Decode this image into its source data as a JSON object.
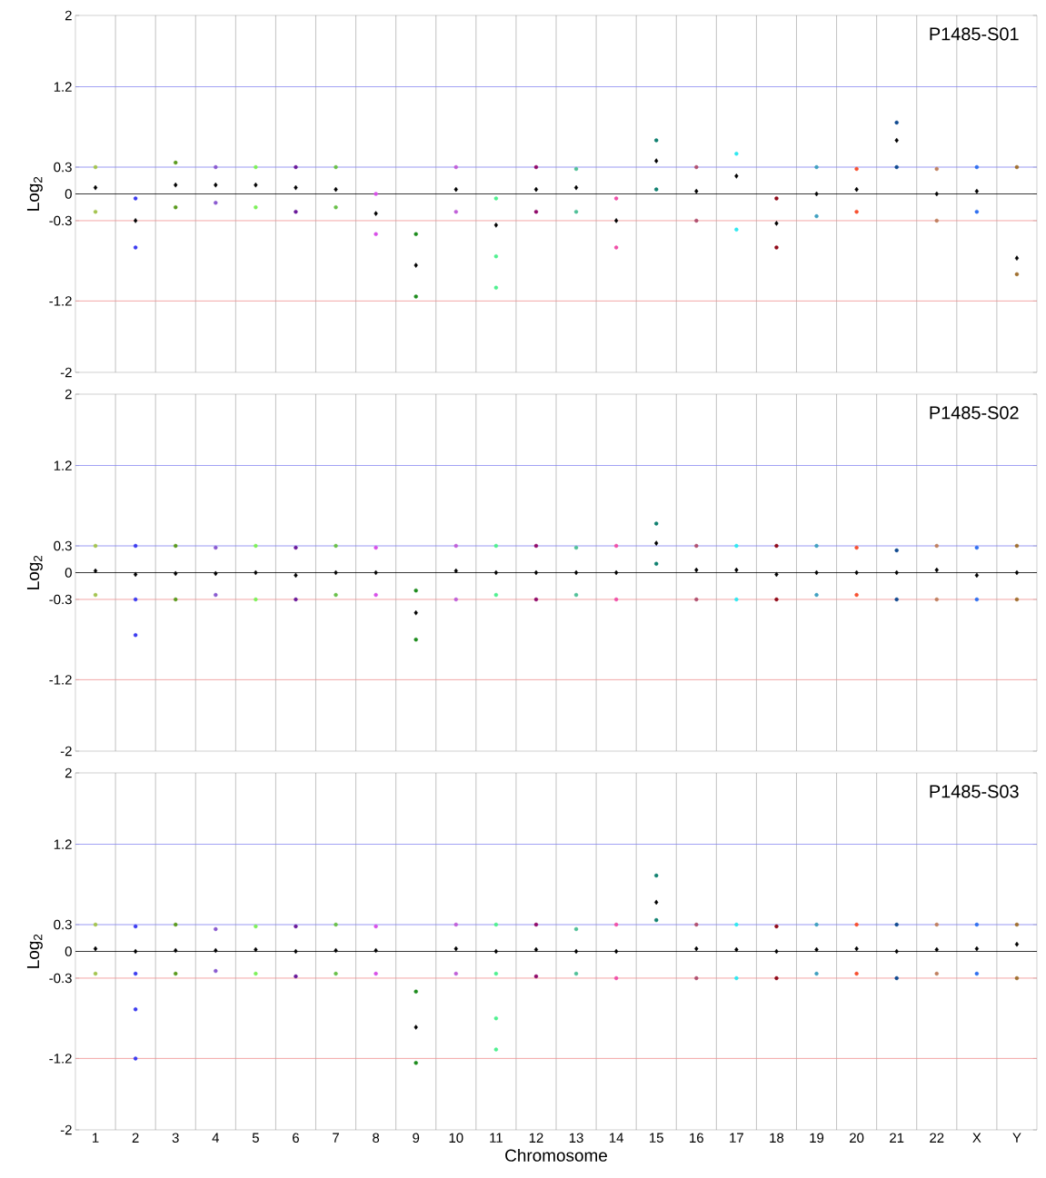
{
  "chart_data": [
    {
      "type": "scatter",
      "title": "P1485-S01",
      "ylabel": "Log$_{2}$",
      "tick_labels": "y",
      "ylim": [
        -2,
        2
      ],
      "yticks": [
        -2,
        -1.2,
        -0.3,
        0,
        0.3,
        1.2,
        2
      ],
      "categories": [
        null,
        null,
        null,
        null,
        null,
        null,
        null,
        null,
        null,
        null,
        null,
        null,
        null,
        null,
        null,
        null,
        null,
        null,
        null,
        null,
        null,
        null,
        null,
        null
      ],
      "ref_lines": [
        {
          "axis": "y",
          "value": 1.2,
          "color": "#8080f0"
        },
        {
          "axis": "y",
          "value": 0.3,
          "color": "#8080f0"
        },
        {
          "axis": "y",
          "value": 0,
          "color": "#000000"
        },
        {
          "axis": "y",
          "value": -0.3,
          "color": "#f09090"
        },
        {
          "axis": "y",
          "value": -1.2,
          "color": "#f09090"
        }
      ],
      "series": [
        {
          "colors": [
            "#a4c450",
            "#3c3cf0",
            "#5a9a1e",
            "#8a5ad0",
            "#7ef05a",
            "#6a1a9a",
            "#6ac04a",
            "#d850e8",
            "#1e8c1e",
            "#c060d8",
            "#50f090",
            "#900a6a",
            "#50c098",
            "#f050a8",
            "#108070",
            "#b05070",
            "#30e8f0",
            "#900a1a",
            "#40a0c0",
            "#f85030",
            "#104a90",
            "#c08060",
            "#3070f0",
            "#a07030"
          ],
          "values": [
            0.3,
            -0.05,
            0.35,
            0.3,
            0.3,
            0.3,
            0.3,
            0.0,
            -0.45,
            0.3,
            -0.05,
            0.3,
            0.28,
            -0.05,
            0.6,
            0.3,
            0.45,
            -0.05,
            0.3,
            0.28,
            0.8,
            0.28,
            0.3,
            0.3
          ]
        },
        {
          "colors": [
            "#a4c450",
            "#3c3cf0",
            "#5a9a1e",
            "#8a5ad0",
            "#7ef05a",
            "#6a1a9a",
            "#6ac04a",
            "#d850e8",
            "#1e8c1e",
            "#c060d8",
            "#50f090",
            "#900a6a",
            "#50c098",
            "#f050a8",
            "#108070",
            "#b05070",
            "#30e8f0",
            "#900a1a",
            "#40a0c0",
            "#f85030",
            "#104a90",
            "#c08060",
            "#3070f0",
            "#a07030"
          ],
          "values": [
            -0.2,
            -0.6,
            -0.15,
            -0.1,
            -0.15,
            -0.2,
            -0.15,
            -0.45,
            -1.15,
            -0.2,
            -0.7,
            -0.2,
            -0.2,
            -0.6,
            0.05,
            -0.3,
            -0.4,
            -0.6,
            -0.25,
            -0.2,
            0.3,
            -0.3,
            -0.2,
            -0.9
          ]
        },
        {
          "color": "#50f090",
          "values": [
            null,
            null,
            null,
            null,
            null,
            null,
            null,
            null,
            null,
            null,
            -1.05,
            null,
            null,
            null,
            null,
            null,
            null,
            null,
            null,
            null,
            null,
            null,
            null,
            null
          ]
        },
        {
          "color": "#000000",
          "marker": "diamond",
          "values": [
            0.07,
            -0.3,
            0.1,
            0.1,
            0.1,
            0.07,
            0.05,
            -0.22,
            -0.8,
            0.05,
            -0.35,
            0.05,
            0.07,
            -0.3,
            0.37,
            0.03,
            0.2,
            -0.33,
            0.0,
            0.05,
            0.6,
            0.0,
            0.03,
            -0.72
          ]
        }
      ]
    },
    {
      "type": "scatter",
      "title": "P1485-S02",
      "ylabel": "Log$_{2}$",
      "tick_labels": "y",
      "ylim": [
        -2,
        2
      ],
      "yticks": [
        -2,
        -1.2,
        -0.3,
        0,
        0.3,
        1.2,
        2
      ],
      "categories": [
        null,
        null,
        null,
        null,
        null,
        null,
        null,
        null,
        null,
        null,
        null,
        null,
        null,
        null,
        null,
        null,
        null,
        null,
        null,
        null,
        null,
        null,
        null,
        null
      ],
      "ref_lines": [
        {
          "axis": "y",
          "value": 1.2,
          "color": "#8080f0"
        },
        {
          "axis": "y",
          "value": 0.3,
          "color": "#8080f0"
        },
        {
          "axis": "y",
          "value": 0,
          "color": "#000000"
        },
        {
          "axis": "y",
          "value": -0.3,
          "color": "#f09090"
        },
        {
          "axis": "y",
          "value": -1.2,
          "color": "#f09090"
        }
      ],
      "series": [
        {
          "colors": [
            "#a4c450",
            "#3c3cf0",
            "#5a9a1e",
            "#8a5ad0",
            "#7ef05a",
            "#6a1a9a",
            "#6ac04a",
            "#d850e8",
            "#1e8c1e",
            "#c060d8",
            "#50f090",
            "#900a6a",
            "#50c098",
            "#f050a8",
            "#108070",
            "#b05070",
            "#30e8f0",
            "#900a1a",
            "#40a0c0",
            "#f85030",
            "#104a90",
            "#c08060",
            "#3070f0",
            "#a07030"
          ],
          "values": [
            0.3,
            0.3,
            0.3,
            0.28,
            0.3,
            0.28,
            0.3,
            0.28,
            -0.2,
            0.3,
            0.3,
            0.3,
            0.28,
            0.3,
            0.55,
            0.3,
            0.3,
            0.3,
            0.3,
            0.28,
            0.25,
            0.3,
            0.28,
            0.3
          ]
        },
        {
          "colors": [
            "#a4c450",
            "#3c3cf0",
            "#5a9a1e",
            "#8a5ad0",
            "#7ef05a",
            "#6a1a9a",
            "#6ac04a",
            "#d850e8",
            "#1e8c1e",
            "#c060d8",
            "#50f090",
            "#900a6a",
            "#50c098",
            "#f050a8",
            "#108070",
            "#b05070",
            "#30e8f0",
            "#900a1a",
            "#40a0c0",
            "#f85030",
            "#104a90",
            "#c08060",
            "#3070f0",
            "#a07030"
          ],
          "values": [
            -0.25,
            -0.3,
            -0.3,
            -0.25,
            -0.3,
            -0.3,
            -0.25,
            -0.25,
            -0.75,
            -0.3,
            -0.25,
            -0.3,
            -0.25,
            -0.3,
            0.1,
            -0.3,
            -0.3,
            -0.3,
            -0.25,
            -0.25,
            -0.3,
            -0.3,
            -0.3,
            -0.3
          ]
        },
        {
          "color": "#3c3cf0",
          "values": [
            null,
            -0.7,
            null,
            null,
            null,
            null,
            null,
            null,
            null,
            null,
            null,
            null,
            null,
            null,
            null,
            null,
            null,
            null,
            null,
            null,
            null,
            null,
            null,
            null
          ]
        },
        {
          "color": "#000000",
          "marker": "diamond",
          "values": [
            0.02,
            -0.02,
            -0.01,
            -0.01,
            0.0,
            -0.03,
            0.0,
            0.0,
            -0.45,
            0.02,
            0.0,
            0.0,
            0.0,
            0.0,
            0.33,
            0.03,
            0.03,
            -0.02,
            0.0,
            0.0,
            0.0,
            0.03,
            -0.03,
            0.0
          ]
        }
      ]
    },
    {
      "type": "scatter",
      "title": "P1485-S03",
      "ylabel": "Log$_{2}$",
      "xlabel": "Chromosome",
      "ylim": [
        -2,
        2
      ],
      "yticks": [
        -2,
        -1.2,
        -0.3,
        0,
        0.3,
        1.2,
        2
      ],
      "categories": [
        "1",
        "2",
        "3",
        "4",
        "5",
        "6",
        "7",
        "8",
        "9",
        "10",
        "11",
        "12",
        "13",
        "14",
        "15",
        "16",
        "17",
        "18",
        "19",
        "20",
        "21",
        "22",
        "X",
        "Y"
      ],
      "ref_lines": [
        {
          "axis": "y",
          "value": 1.2,
          "color": "#8080f0"
        },
        {
          "axis": "y",
          "value": 0.3,
          "color": "#8080f0"
        },
        {
          "axis": "y",
          "value": 0,
          "color": "#000000"
        },
        {
          "axis": "y",
          "value": -0.3,
          "color": "#f09090"
        },
        {
          "axis": "y",
          "value": -1.2,
          "color": "#f09090"
        }
      ],
      "series": [
        {
          "colors": [
            "#a4c450",
            "#3c3cf0",
            "#5a9a1e",
            "#8a5ad0",
            "#7ef05a",
            "#6a1a9a",
            "#6ac04a",
            "#d850e8",
            "#1e8c1e",
            "#c060d8",
            "#50f090",
            "#900a6a",
            "#50c098",
            "#f050a8",
            "#108070",
            "#b05070",
            "#30e8f0",
            "#900a1a",
            "#40a0c0",
            "#f85030",
            "#104a90",
            "#c08060",
            "#3070f0",
            "#a07030"
          ],
          "values": [
            0.3,
            0.28,
            0.3,
            0.25,
            0.28,
            0.28,
            0.3,
            0.28,
            -0.45,
            0.3,
            0.3,
            0.3,
            0.25,
            0.3,
            0.85,
            0.3,
            0.3,
            0.28,
            0.3,
            0.3,
            0.3,
            0.3,
            0.3,
            0.3
          ]
        },
        {
          "colors": [
            "#a4c450",
            "#3c3cf0",
            "#5a9a1e",
            "#8a5ad0",
            "#7ef05a",
            "#6a1a9a",
            "#6ac04a",
            "#d850e8",
            "#1e8c1e",
            "#c060d8",
            "#50f090",
            "#900a6a",
            "#50c098",
            "#f050a8",
            "#108070",
            "#b05070",
            "#30e8f0",
            "#900a1a",
            "#40a0c0",
            "#f85030",
            "#104a90",
            "#c08060",
            "#3070f0",
            "#a07030"
          ],
          "values": [
            -0.25,
            -0.25,
            -0.25,
            -0.22,
            -0.25,
            -0.28,
            -0.25,
            -0.25,
            -1.25,
            -0.25,
            -0.25,
            -0.28,
            -0.25,
            -0.3,
            0.35,
            -0.3,
            -0.3,
            -0.3,
            -0.25,
            -0.25,
            -0.3,
            -0.25,
            -0.25,
            -0.3
          ]
        },
        {
          "colors": [
            "#a4c450",
            "#3c3cf0",
            "#5a9a1e",
            "#8a5ad0",
            "#7ef05a",
            "#6a1a9a",
            "#6ac04a",
            "#d850e8",
            "#1e8c1e",
            "#c060d8",
            "#50f090",
            "#900a6a",
            "#50c098",
            "#f050a8",
            "#108070",
            "#b05070",
            "#30e8f0",
            "#900a1a",
            "#40a0c0",
            "#f85030",
            "#104a90",
            "#c08060",
            "#3070f0",
            "#a07030"
          ],
          "values": [
            null,
            -0.65,
            null,
            null,
            null,
            null,
            null,
            null,
            null,
            null,
            -0.75,
            null,
            null,
            null,
            null,
            null,
            null,
            null,
            null,
            null,
            null,
            null,
            null,
            null
          ]
        },
        {
          "colors": [
            "#a4c450",
            "#3c3cf0",
            "#5a9a1e",
            "#8a5ad0",
            "#7ef05a",
            "#6a1a9a",
            "#6ac04a",
            "#d850e8",
            "#1e8c1e",
            "#c060d8",
            "#50f090",
            "#900a6a",
            "#50c098",
            "#f050a8",
            "#108070",
            "#b05070",
            "#30e8f0",
            "#900a1a",
            "#40a0c0",
            "#f85030",
            "#104a90",
            "#c08060",
            "#3070f0",
            "#a07030"
          ],
          "values": [
            null,
            -1.2,
            null,
            null,
            null,
            null,
            null,
            null,
            null,
            null,
            -1.1,
            null,
            null,
            null,
            null,
            null,
            null,
            null,
            null,
            null,
            null,
            null,
            null,
            null
          ]
        },
        {
          "color": "#000000",
          "marker": "diamond",
          "values": [
            0.03,
            0.0,
            0.01,
            0.01,
            0.02,
            0.0,
            0.01,
            0.01,
            -0.85,
            0.03,
            0.0,
            0.02,
            0.0,
            0.0,
            0.55,
            0.03,
            0.02,
            0.0,
            0.02,
            0.03,
            0.0,
            0.02,
            0.03,
            0.08
          ]
        }
      ]
    }
  ]
}
